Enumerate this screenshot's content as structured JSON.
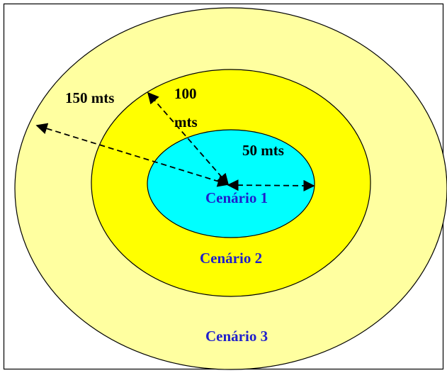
{
  "colors": {
    "outer_zone": "#FFFFA0",
    "middle_zone": "#FFFF00",
    "inner_zone": "#00FFFF",
    "scenario_text": "#1F1FCC",
    "radius_text": "#000000",
    "border": "#000000"
  },
  "radii": {
    "outer": {
      "label_line1": "150 mts"
    },
    "middle": {
      "label_line1": "100",
      "label_line2": "mts"
    },
    "inner": {
      "label_line1": "50 mts"
    }
  },
  "scenarios": {
    "inner": "Cenário 1",
    "middle": "Cenário 2",
    "outer": "Cenário 3"
  }
}
